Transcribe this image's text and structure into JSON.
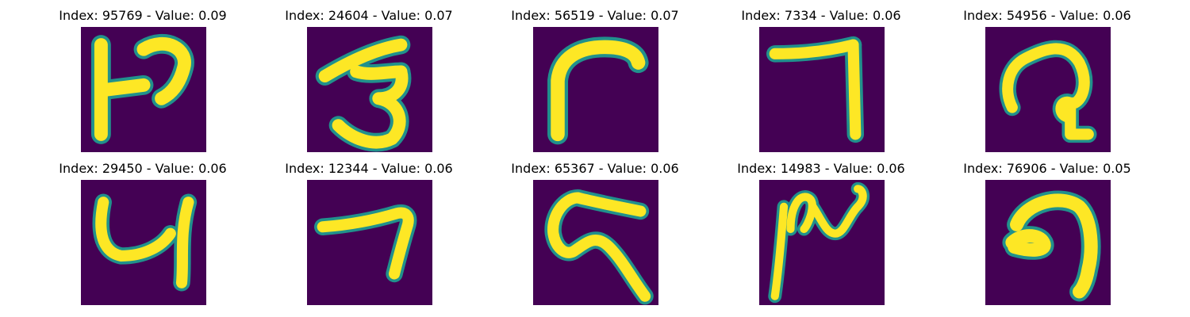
{
  "figure": {
    "panels": [
      {
        "title": "Index: 95769 - Value: 0.09",
        "icon": "digit-image"
      },
      {
        "title": "Index: 24604 - Value: 0.07",
        "icon": "digit-image"
      },
      {
        "title": "Index: 56519 - Value: 0.07",
        "icon": "digit-image"
      },
      {
        "title": "Index: 7334 - Value: 0.06",
        "icon": "digit-image"
      },
      {
        "title": "Index: 54956 - Value: 0.06",
        "icon": "digit-image"
      },
      {
        "title": "Index: 29450 - Value: 0.06",
        "icon": "digit-image"
      },
      {
        "title": "Index: 12344 - Value: 0.06",
        "icon": "digit-image"
      },
      {
        "title": "Index: 65367 - Value: 0.06",
        "icon": "digit-image"
      },
      {
        "title": "Index: 14983 - Value: 0.06",
        "icon": "digit-image"
      },
      {
        "title": "Index: 76906 - Value: 0.05",
        "icon": "digit-image"
      }
    ]
  },
  "colors": {
    "background": "#440154",
    "stroke_outer": "#21918c",
    "stroke_mid": "#5ec962",
    "stroke_core": "#fde725"
  }
}
